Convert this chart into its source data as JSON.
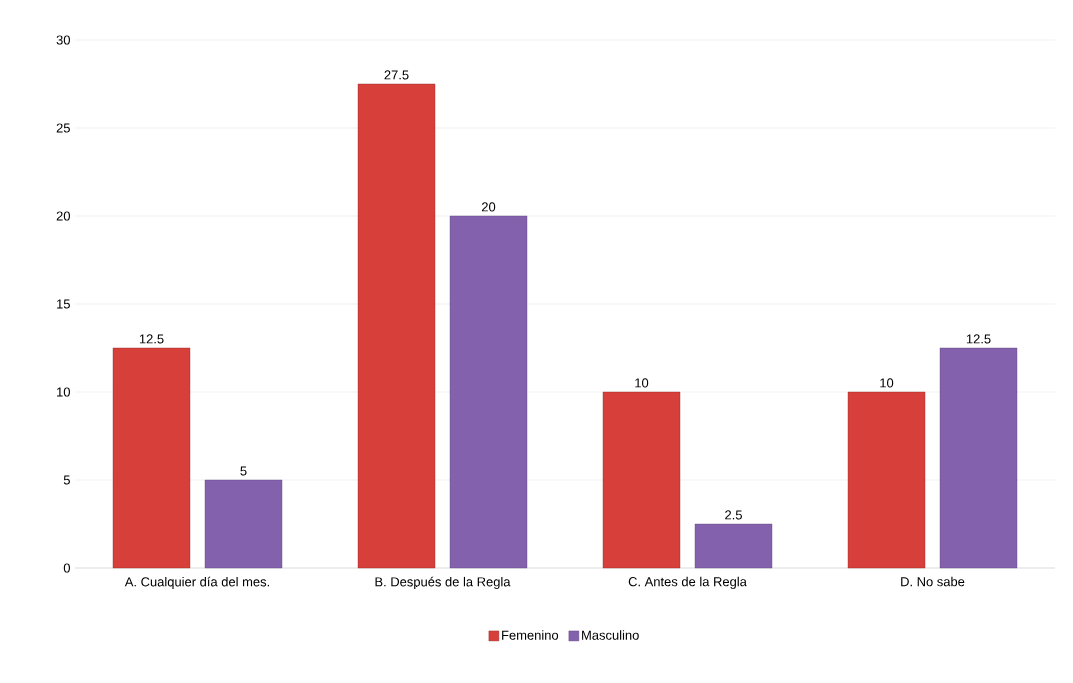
{
  "chart_data": {
    "type": "bar",
    "categories": [
      "A. Cualquier día del mes.",
      "B. Después de la Regla",
      "C. Antes de la Regla",
      "D. No sabe"
    ],
    "series": [
      {
        "name": "Femenino",
        "color": "#d63f3a",
        "values": [
          12.5,
          27.5,
          10,
          10
        ]
      },
      {
        "name": "Masculino",
        "color": "#8461ad",
        "values": [
          5,
          20,
          2.5,
          12.5
        ]
      }
    ],
    "ylim": [
      0,
      30
    ],
    "yticks": [
      0,
      5,
      10,
      15,
      20,
      25,
      30
    ],
    "grid": "y",
    "legend": "bottom",
    "data_labels": true
  }
}
